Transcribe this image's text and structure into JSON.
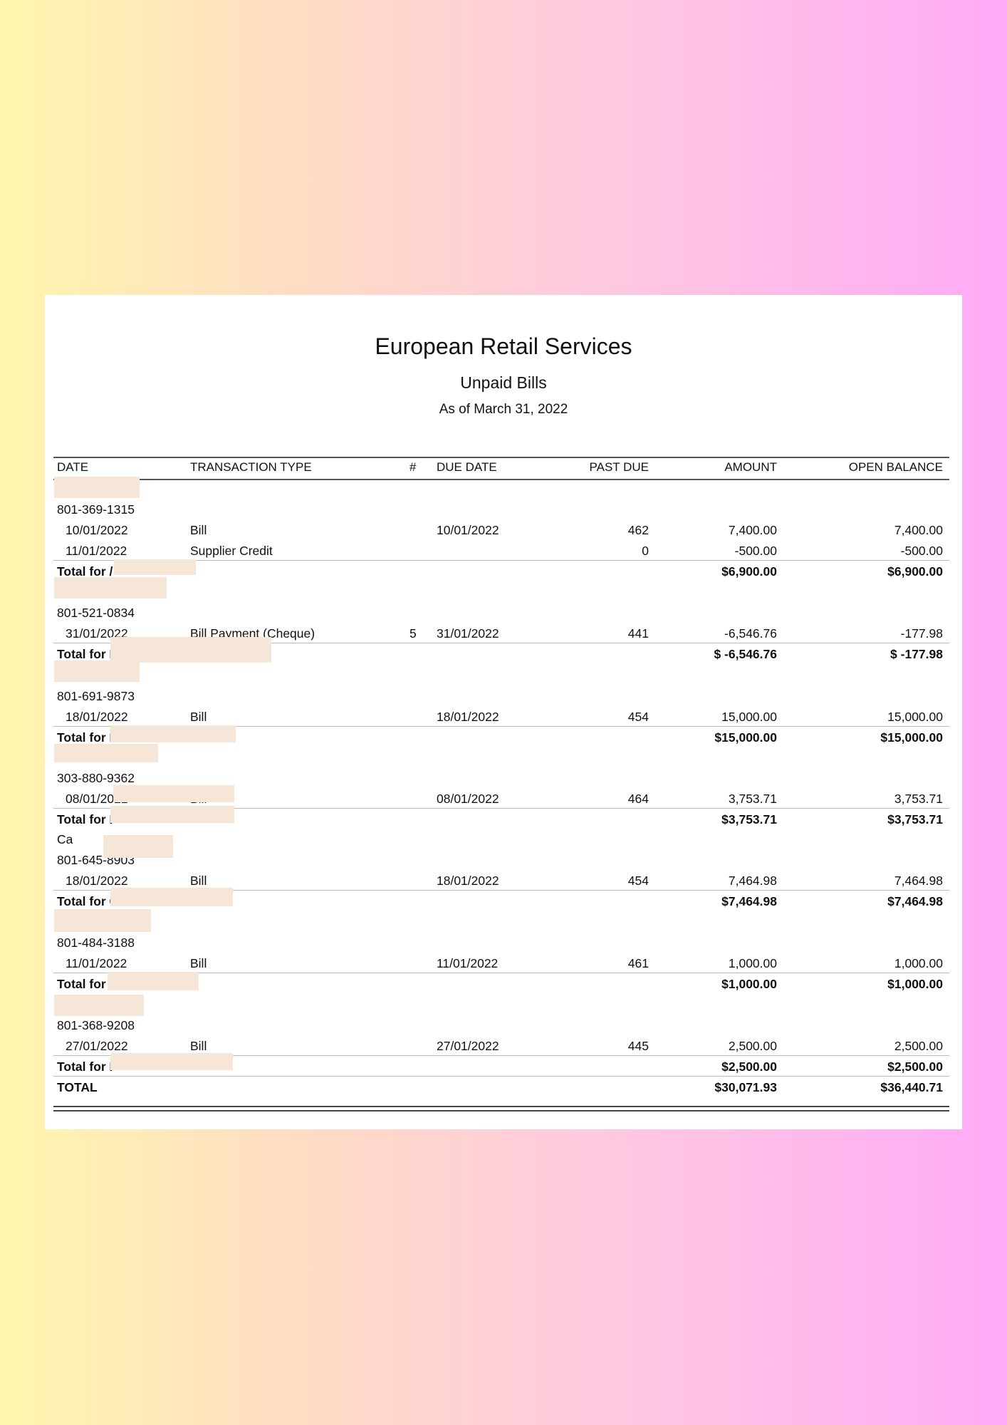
{
  "report": {
    "company": "European Retail Services",
    "title": "Unpaid Bills",
    "as_of": "As of March 31, 2022"
  },
  "columns": {
    "date": "DATE",
    "type": "TRANSACTION TYPE",
    "num": "#",
    "due": "DUE DATE",
    "past_due": "PAST DUE",
    "amount": "AMOUNT",
    "open_balance": "OPEN BALANCE"
  },
  "groups": [
    {
      "name_fragment": "/",
      "phone": "801-369-1315",
      "rows": [
        {
          "date": "10/01/2022",
          "type": "Bill",
          "num": "",
          "due": "10/01/2022",
          "past_due": "462",
          "amount": "7,400.00",
          "open": "7,400.00"
        },
        {
          "date": "11/01/2022",
          "type": "Supplier Credit",
          "num": "",
          "due": "",
          "past_due": "0",
          "amount": "-500.00",
          "open": "-500.00"
        }
      ],
      "total_label": "Total for /",
      "total_amount": "$6,900.00",
      "total_open": "$6,900.00"
    },
    {
      "name_fragment": "I",
      "phone": "801-521-0834",
      "rows": [
        {
          "date": "31/01/2022",
          "type": "Bill Payment (Cheque)",
          "num": "5",
          "due": "31/01/2022",
          "past_due": "441",
          "amount": "-6,546.76",
          "open": "-177.98"
        }
      ],
      "total_label": "Total for I",
      "total_amount": "$ -6,546.76",
      "total_open": "$ -177.98"
    },
    {
      "name_fragment": "I",
      "phone": "801-691-9873",
      "rows": [
        {
          "date": "18/01/2022",
          "type": "Bill",
          "num": "",
          "due": "18/01/2022",
          "past_due": "454",
          "amount": "15,000.00",
          "open": "15,000.00"
        }
      ],
      "total_label": "Total for I",
      "total_amount": "$15,000.00",
      "total_open": "$15,000.00"
    },
    {
      "name_fragment": "I",
      "phone": "303-880-9362",
      "rows": [
        {
          "date": "08/01/2022",
          "type": "Bill",
          "num": "",
          "due": "08/01/2022",
          "past_due": "464",
          "amount": "3,753.71",
          "open": "3,753.71"
        }
      ],
      "total_label": "Total for I",
      "total_amount": "$3,753.71",
      "total_open": "$3,753.71"
    },
    {
      "name_fragment": "Ca",
      "phone": "801-645-8903",
      "rows": [
        {
          "date": "18/01/2022",
          "type": "Bill",
          "num": "",
          "due": "18/01/2022",
          "past_due": "454",
          "amount": "7,464.98",
          "open": "7,464.98"
        }
      ],
      "total_label": "Total for C",
      "total_amount": "$7,464.98",
      "total_open": "$7,464.98"
    },
    {
      "name_fragment": "I",
      "phone": "801-484-3188",
      "rows": [
        {
          "date": "11/01/2022",
          "type": "Bill",
          "num": "",
          "due": "11/01/2022",
          "past_due": "461",
          "amount": "1,000.00",
          "open": "1,000.00"
        }
      ],
      "total_label": "Total for",
      "total_amount": "$1,000.00",
      "total_open": "$1,000.00"
    },
    {
      "name_fragment": "",
      "phone": "801-368-9208",
      "rows": [
        {
          "date": "27/01/2022",
          "type": "Bill",
          "num": "",
          "due": "27/01/2022",
          "past_due": "445",
          "amount": "2,500.00",
          "open": "2,500.00"
        }
      ],
      "total_label": "Total for I",
      "total_amount": "$2,500.00",
      "total_open": "$2,500.00"
    }
  ],
  "grand_total": {
    "label": "TOTAL",
    "amount": "$30,071.93",
    "open": "$36,440.71"
  }
}
